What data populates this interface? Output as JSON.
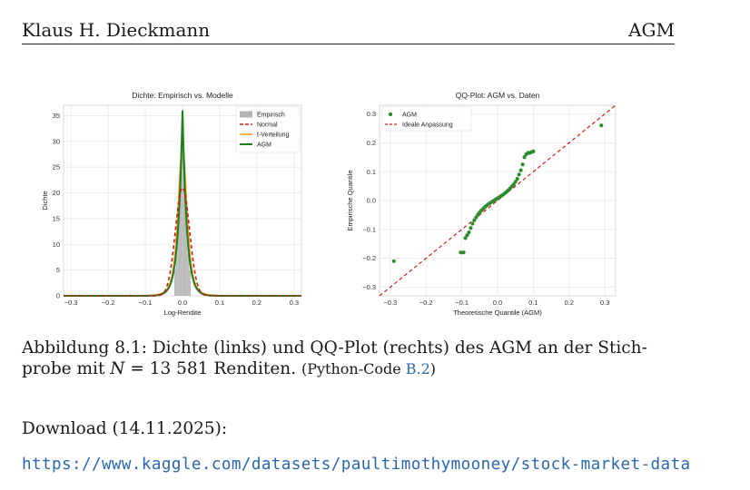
{
  "header": {
    "author": "Klaus H. Dieckmann",
    "short_title": "AGM"
  },
  "colors": {
    "link": "#2a67b0",
    "empirisch": "#b3b3b3",
    "normal": "#cc1f1a",
    "t": "#ff9f1c",
    "agm": "#1f7f1f",
    "qq_points": "#2e8b2e"
  },
  "chart_data": [
    {
      "type": "area",
      "title": "Dichte: Empirisch vs. Modelle",
      "xlabel": "Log-Rendite",
      "ylabel": "Dichte",
      "xlim": [
        -0.32,
        0.32
      ],
      "ylim": [
        0,
        37
      ],
      "xticks": [
        -0.3,
        -0.2,
        -0.1,
        0.0,
        0.1,
        0.2,
        0.3
      ],
      "xtick_labels": [
        "−0.3",
        "−0.2",
        "−0.1",
        "0.0",
        "0.1",
        "0.2",
        "0.3"
      ],
      "yticks": [
        0,
        5,
        10,
        15,
        20,
        25,
        30,
        35
      ],
      "grid": true,
      "legend_position": "top-right",
      "legend": [
        "Empirisch",
        "Normal",
        "t-Verteilung",
        "AGM"
      ],
      "series": [
        {
          "name": "Empirisch",
          "kind": "histogram",
          "x": [
            -0.02,
            -0.016,
            -0.012,
            -0.008,
            -0.004,
            0.0,
            0.004,
            0.008,
            0.012,
            0.016,
            0.02
          ],
          "y": [
            5.0,
            8.0,
            13.0,
            20.0,
            29.0,
            31.0,
            28.0,
            20.0,
            13.0,
            8.0,
            5.0
          ]
        },
        {
          "name": "Normal",
          "sigma": 0.019,
          "peak": 21.0
        },
        {
          "name": "t-Verteilung",
          "peak": 29.0
        },
        {
          "name": "AGM",
          "peak": 36.0
        }
      ]
    },
    {
      "type": "scatter",
      "title": "QQ-Plot: AGM vs. Daten",
      "xlabel": "Theoretische Quantile (AGM)",
      "ylabel": "Empirische Quantile",
      "xlim": [
        -0.33,
        0.33
      ],
      "ylim": [
        -0.33,
        0.33
      ],
      "xticks": [
        -0.3,
        -0.2,
        -0.1,
        0.0,
        0.1,
        0.2,
        0.3
      ],
      "xtick_labels": [
        "−0.3",
        "−0.2",
        "−0.1",
        "0.0",
        "0.1",
        "0.2",
        "0.3"
      ],
      "yticks": [
        -0.3,
        -0.2,
        -0.1,
        0.0,
        0.1,
        0.2,
        0.3
      ],
      "ytick_labels": [
        "−0.3",
        "−0.2",
        "−0.1",
        "0.0",
        "0.1",
        "0.2",
        "0.3"
      ],
      "grid": true,
      "legend_position": "top-left",
      "legend": [
        "AGM",
        "Ideale Anpassung"
      ],
      "points": {
        "x": [
          -0.29,
          -0.103,
          -0.095,
          -0.09,
          -0.085,
          -0.08,
          -0.075,
          -0.07,
          -0.065,
          -0.06,
          -0.055,
          -0.05,
          -0.045,
          -0.04,
          -0.035,
          -0.03,
          -0.025,
          -0.02,
          -0.015,
          -0.01,
          -0.005,
          0.0,
          0.005,
          0.01,
          0.015,
          0.02,
          0.025,
          0.03,
          0.035,
          0.04,
          0.045,
          0.05,
          0.055,
          0.06,
          0.065,
          0.07,
          0.075,
          0.08,
          0.085,
          0.09,
          0.095,
          0.1,
          0.29
        ],
        "y": [
          -0.21,
          -0.18,
          -0.18,
          -0.13,
          -0.12,
          -0.11,
          -0.095,
          -0.08,
          -0.068,
          -0.058,
          -0.049,
          -0.041,
          -0.034,
          -0.028,
          -0.022,
          -0.017,
          -0.012,
          -0.008,
          -0.004,
          0.0,
          0.004,
          0.008,
          0.012,
          0.016,
          0.02,
          0.025,
          0.03,
          0.036,
          0.042,
          0.049,
          0.056,
          0.065,
          0.075,
          0.09,
          0.105,
          0.125,
          0.15,
          0.16,
          0.165,
          0.165,
          0.168,
          0.17,
          0.26
        ]
      },
      "reference_line": {
        "name": "Ideale Anpassung",
        "x": [
          -0.33,
          0.33
        ],
        "y": [
          -0.33,
          0.33
        ]
      }
    }
  ],
  "caption": {
    "label": "Abbildung 8.1:",
    "text1": " Dichte (links) und QQ-Plot (rechts) des AGM an der Stich-",
    "text2_pre": "probe mit ",
    "math_var": "N",
    "math_eq": " = 13 581 ",
    "text2_post": "Renditen. ",
    "code_pre": "(Python-Code ",
    "code_ref": "B.2",
    "code_post": ")"
  },
  "download": {
    "label": "Download (14.11.2025):",
    "url": "https://www.kaggle.com/datasets/paultimothymooney/stock-market-data"
  }
}
